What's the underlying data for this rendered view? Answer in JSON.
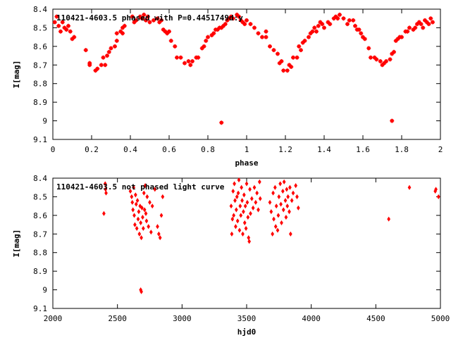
{
  "colors": {
    "series": "#ff0000",
    "axis": "#000000",
    "background": "#ffffff"
  },
  "chart_data": [
    {
      "type": "scatter",
      "title": "110421-4603.5 phased with P=0.4451749d:y",
      "xlabel": "phase",
      "ylabel": "I[mag]",
      "xlim": [
        0,
        2
      ],
      "ylim": [
        9.1,
        8.4
      ],
      "y_inverted": true,
      "grid": false,
      "x_ticks": [
        "0",
        "0.2",
        "0.4",
        "0.6",
        "0.8",
        "1",
        "1.2",
        "1.4",
        "1.6",
        "1.8",
        "2"
      ],
      "y_ticks": [
        "8.4",
        "8.5",
        "8.6",
        "8.7",
        "8.8",
        "8.9",
        "9",
        "9.1"
      ],
      "series": [
        {
          "points": [
            [
              0.01,
              8.47
            ],
            [
              0.02,
              8.44
            ],
            [
              0.03,
              8.49
            ],
            [
              0.04,
              8.52
            ],
            [
              0.05,
              8.47
            ],
            [
              0.06,
              8.5
            ],
            [
              0.07,
              8.51
            ],
            [
              0.08,
              8.49
            ],
            [
              0.09,
              8.52
            ],
            [
              0.1,
              8.56
            ],
            [
              0.11,
              8.55
            ],
            [
              0.17,
              8.62
            ],
            [
              0.19,
              8.69
            ],
            [
              0.19,
              8.7
            ],
            [
              0.22,
              8.73
            ],
            [
              0.23,
              8.72
            ],
            [
              0.25,
              8.7
            ],
            [
              0.27,
              8.7
            ],
            [
              0.26,
              8.66
            ],
            [
              0.28,
              8.65
            ],
            [
              0.29,
              8.63
            ],
            [
              0.3,
              8.61
            ],
            [
              0.32,
              8.6
            ],
            [
              0.33,
              8.57
            ],
            [
              0.33,
              8.53
            ],
            [
              0.35,
              8.52
            ],
            [
              0.36,
              8.5
            ],
            [
              0.36,
              8.53
            ],
            [
              0.37,
              8.49
            ],
            [
              0.41,
              8.44
            ],
            [
              0.42,
              8.47
            ],
            [
              0.43,
              8.46
            ],
            [
              0.45,
              8.44
            ],
            [
              0.46,
              8.45
            ],
            [
              0.47,
              8.43
            ],
            [
              0.48,
              8.46
            ],
            [
              0.49,
              8.44
            ],
            [
              0.5,
              8.47
            ],
            [
              0.52,
              8.46
            ],
            [
              0.54,
              8.45
            ],
            [
              0.55,
              8.47
            ],
            [
              0.56,
              8.46
            ],
            [
              0.57,
              8.51
            ],
            [
              0.58,
              8.52
            ],
            [
              0.59,
              8.53
            ],
            [
              0.6,
              8.52
            ],
            [
              0.61,
              8.57
            ],
            [
              0.63,
              8.6
            ],
            [
              0.64,
              8.66
            ],
            [
              0.66,
              8.66
            ],
            [
              0.68,
              8.69
            ],
            [
              0.7,
              8.68
            ],
            [
              0.71,
              8.7
            ],
            [
              0.72,
              8.68
            ],
            [
              0.74,
              8.66
            ],
            [
              0.75,
              8.66
            ],
            [
              0.77,
              8.61
            ],
            [
              0.78,
              8.6
            ],
            [
              0.79,
              8.57
            ],
            [
              0.8,
              8.55
            ],
            [
              0.82,
              8.54
            ],
            [
              0.83,
              8.53
            ],
            [
              0.84,
              8.51
            ],
            [
              0.85,
              8.51
            ],
            [
              0.86,
              8.5
            ],
            [
              0.87,
              8.5
            ],
            [
              0.88,
              8.49
            ],
            [
              0.89,
              8.48
            ],
            [
              0.9,
              8.46
            ],
            [
              0.91,
              8.45
            ],
            [
              0.92,
              8.44
            ],
            [
              0.93,
              8.45
            ],
            [
              0.95,
              8.43
            ],
            [
              0.96,
              8.44
            ],
            [
              0.97,
              8.46
            ],
            [
              0.98,
              8.47
            ],
            [
              0.99,
              8.48
            ],
            [
              1.0,
              8.46
            ],
            [
              1.02,
              8.48
            ],
            [
              1.04,
              8.5
            ],
            [
              0.87,
              9.01
            ]
          ]
        },
        {
          "points": [
            [
              1.06,
              8.53
            ],
            [
              1.08,
              8.55
            ],
            [
              1.1,
              8.55
            ],
            [
              1.1,
              8.52
            ],
            [
              1.12,
              8.6
            ],
            [
              1.14,
              8.62
            ],
            [
              1.16,
              8.64
            ],
            [
              1.17,
              8.69
            ],
            [
              1.18,
              8.68
            ],
            [
              1.19,
              8.73
            ],
            [
              1.21,
              8.73
            ],
            [
              1.22,
              8.7
            ],
            [
              1.23,
              8.71
            ],
            [
              1.24,
              8.66
            ],
            [
              1.26,
              8.66
            ],
            [
              1.27,
              8.6
            ],
            [
              1.28,
              8.62
            ],
            [
              1.29,
              8.58
            ],
            [
              1.3,
              8.57
            ],
            [
              1.32,
              8.55
            ],
            [
              1.33,
              8.53
            ],
            [
              1.34,
              8.52
            ],
            [
              1.35,
              8.5
            ],
            [
              1.36,
              8.52
            ],
            [
              1.37,
              8.49
            ],
            [
              1.38,
              8.47
            ],
            [
              1.39,
              8.48
            ],
            [
              1.4,
              8.5
            ],
            [
              1.42,
              8.47
            ],
            [
              1.43,
              8.48
            ],
            [
              1.45,
              8.45
            ],
            [
              1.46,
              8.44
            ],
            [
              1.47,
              8.45
            ],
            [
              1.48,
              8.43
            ],
            [
              1.5,
              8.45
            ],
            [
              1.52,
              8.48
            ],
            [
              1.53,
              8.46
            ],
            [
              1.55,
              8.46
            ],
            [
              1.56,
              8.49
            ],
            [
              1.57,
              8.51
            ],
            [
              1.58,
              8.51
            ],
            [
              1.59,
              8.53
            ],
            [
              1.6,
              8.55
            ],
            [
              1.61,
              8.56
            ],
            [
              1.63,
              8.61
            ],
            [
              1.64,
              8.66
            ],
            [
              1.66,
              8.66
            ],
            [
              1.67,
              8.67
            ],
            [
              1.69,
              8.68
            ],
            [
              1.7,
              8.7
            ],
            [
              1.71,
              8.69
            ],
            [
              1.72,
              8.68
            ],
            [
              1.74,
              8.67
            ],
            [
              1.75,
              8.64
            ],
            [
              1.76,
              8.63
            ],
            [
              1.77,
              8.57
            ],
            [
              1.78,
              8.56
            ],
            [
              1.79,
              8.55
            ],
            [
              1.8,
              8.55
            ],
            [
              1.82,
              8.52
            ],
            [
              1.83,
              8.52
            ],
            [
              1.84,
              8.5
            ],
            [
              1.86,
              8.51
            ],
            [
              1.87,
              8.5
            ],
            [
              1.88,
              8.48
            ],
            [
              1.89,
              8.47
            ],
            [
              1.9,
              8.48
            ],
            [
              1.91,
              8.5
            ],
            [
              1.92,
              8.46
            ],
            [
              1.93,
              8.47
            ],
            [
              1.94,
              8.48
            ],
            [
              1.95,
              8.45
            ],
            [
              1.96,
              8.47
            ],
            [
              1.75,
              9.0
            ]
          ]
        }
      ]
    },
    {
      "type": "scatter",
      "title": "110421-4603.5 not phased light curve",
      "xlabel": "hjd0",
      "ylabel": "I[mag]",
      "xlim": [
        2000,
        5000
      ],
      "ylim": [
        9.1,
        8.4
      ],
      "y_inverted": true,
      "grid": false,
      "x_ticks": [
        "2000",
        "2500",
        "3000",
        "3500",
        "4000",
        "4500",
        "5000"
      ],
      "y_ticks": [
        "8.4",
        "8.5",
        "8.6",
        "8.7",
        "8.8",
        "8.9",
        "9",
        "9.1"
      ],
      "series": [
        {
          "points": [
            [
              2395,
              8.59
            ],
            [
              2405,
              8.43
            ],
            [
              2408,
              8.46
            ],
            [
              2412,
              8.48
            ],
            [
              2600,
              8.47
            ],
            [
              2610,
              8.5
            ],
            [
              2615,
              8.53
            ],
            [
              2620,
              8.57
            ],
            [
              2625,
              8.45
            ],
            [
              2630,
              8.6
            ],
            [
              2635,
              8.65
            ],
            [
              2640,
              8.49
            ],
            [
              2645,
              8.54
            ],
            [
              2650,
              8.67
            ],
            [
              2655,
              8.52
            ],
            [
              2660,
              8.62
            ],
            [
              2665,
              8.58
            ],
            [
              2670,
              8.7
            ],
            [
              2675,
              8.55
            ],
            [
              2680,
              8.64
            ],
            [
              2685,
              8.72
            ],
            [
              2690,
              8.56
            ],
            [
              2695,
              8.61
            ],
            [
              2700,
              8.67
            ],
            [
              2705,
              8.48
            ],
            [
              2710,
              8.57
            ],
            [
              2715,
              8.44
            ],
            [
              2720,
              8.59
            ],
            [
              2725,
              8.63
            ],
            [
              2730,
              8.5
            ],
            [
              2740,
              8.66
            ],
            [
              2750,
              8.53
            ],
            [
              2760,
              8.69
            ],
            [
              2770,
              8.55
            ],
            [
              2790,
              8.46
            ],
            [
              2810,
              8.66
            ],
            [
              2820,
              8.7
            ],
            [
              2830,
              8.72
            ],
            [
              2840,
              8.6
            ],
            [
              2850,
              8.5
            ],
            [
              2680,
              9.0
            ],
            [
              2685,
              9.01
            ],
            [
              3380,
              8.55
            ],
            [
              3385,
              8.7
            ],
            [
              3390,
              8.62
            ],
            [
              3395,
              8.47
            ],
            [
              3400,
              8.6
            ],
            [
              3405,
              8.43
            ],
            [
              3410,
              8.52
            ],
            [
              3415,
              8.66
            ],
            [
              3420,
              8.57
            ],
            [
              3425,
              8.5
            ],
            [
              3430,
              8.63
            ],
            [
              3435,
              8.48
            ],
            [
              3440,
              8.41
            ],
            [
              3445,
              8.68
            ],
            [
              3450,
              8.55
            ],
            [
              3455,
              8.6
            ],
            [
              3460,
              8.45
            ],
            [
              3465,
              8.52
            ],
            [
              3470,
              8.7
            ],
            [
              3475,
              8.58
            ],
            [
              3480,
              8.49
            ],
            [
              3485,
              8.64
            ],
            [
              3490,
              8.55
            ],
            [
              3495,
              8.67
            ],
            [
              3500,
              8.43
            ],
            [
              3505,
              8.53
            ],
            [
              3510,
              8.61
            ],
            [
              3515,
              8.72
            ],
            [
              3520,
              8.74
            ],
            [
              3525,
              8.46
            ],
            [
              3530,
              8.59
            ],
            [
              3540,
              8.51
            ],
            [
              3550,
              8.56
            ],
            [
              3560,
              8.45
            ],
            [
              3570,
              8.53
            ],
            [
              3580,
              8.48
            ],
            [
              3590,
              8.57
            ],
            [
              3600,
              8.42
            ],
            [
              3605,
              8.51
            ],
            [
              3680,
              8.53
            ],
            [
              3690,
              8.58
            ],
            [
              3700,
              8.7
            ],
            [
              3705,
              8.48
            ],
            [
              3710,
              8.62
            ],
            [
              3720,
              8.45
            ],
            [
              3725,
              8.66
            ],
            [
              3730,
              8.55
            ],
            [
              3740,
              8.68
            ],
            [
              3745,
              8.6
            ],
            [
              3750,
              8.5
            ],
            [
              3760,
              8.43
            ],
            [
              3765,
              8.54
            ],
            [
              3770,
              8.64
            ],
            [
              3780,
              8.47
            ],
            [
              3785,
              8.57
            ],
            [
              3790,
              8.42
            ],
            [
              3800,
              8.52
            ],
            [
              3805,
              8.61
            ],
            [
              3810,
              8.46
            ],
            [
              3815,
              8.55
            ],
            [
              3820,
              8.5
            ],
            [
              3830,
              8.58
            ],
            [
              3835,
              8.45
            ],
            [
              3840,
              8.7
            ],
            [
              3850,
              8.52
            ],
            [
              3860,
              8.48
            ],
            [
              3880,
              8.44
            ],
            [
              3890,
              8.5
            ],
            [
              3900,
              8.56
            ],
            [
              4600,
              8.62
            ],
            [
              4760,
              8.45
            ],
            [
              4960,
              8.47
            ],
            [
              4965,
              8.46
            ],
            [
              4985,
              8.5
            ]
          ]
        }
      ]
    }
  ]
}
